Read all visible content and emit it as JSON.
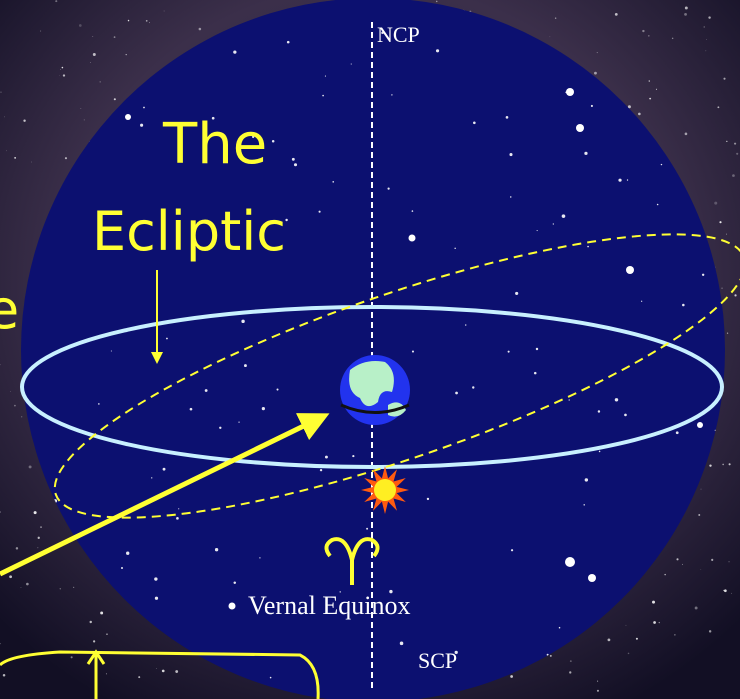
{
  "labels": {
    "ncp": "NCP",
    "the": "The",
    "ecliptic": "Ecliptic",
    "fragment": "e",
    "vernal_equinox": "Vernal Equinox",
    "scp": "SCP"
  }
}
